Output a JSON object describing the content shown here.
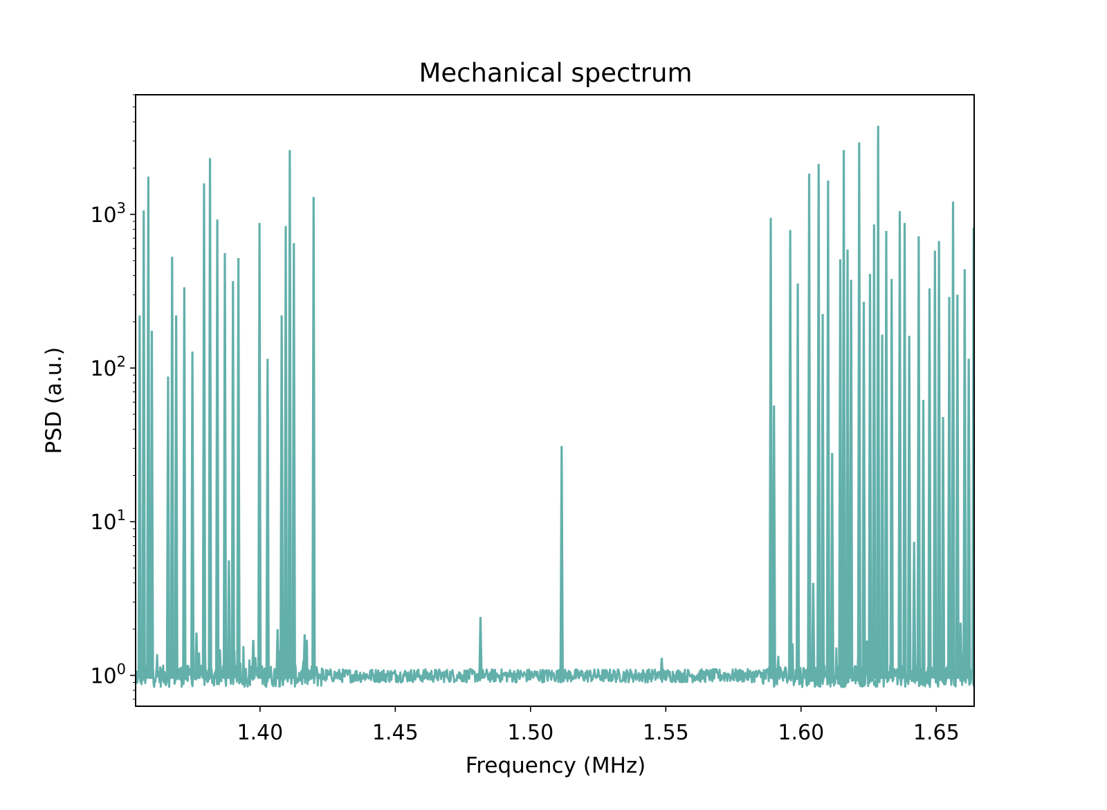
{
  "chart_data": {
    "type": "line",
    "title": "Mechanical spectrum",
    "xlabel": "Frequency (MHz)",
    "ylabel": "PSD (a.u.)",
    "xlim": [
      1.354,
      1.664
    ],
    "ylim": [
      0.63,
      6000
    ],
    "yscale": "log",
    "grid": false,
    "legend": "none",
    "line_color": "#63b0ab",
    "x_ticks": [
      {
        "value": 1.4,
        "label": "1.40"
      },
      {
        "value": 1.45,
        "label": "1.45"
      },
      {
        "value": 1.5,
        "label": "1.50"
      },
      {
        "value": 1.55,
        "label": "1.55"
      },
      {
        "value": 1.6,
        "label": "1.60"
      },
      {
        "value": 1.65,
        "label": "1.65"
      }
    ],
    "y_ticks": [
      {
        "value": 1,
        "base": "10",
        "exp": "0"
      },
      {
        "value": 10,
        "base": "10",
        "exp": "1"
      },
      {
        "value": 100,
        "base": "10",
        "exp": "2"
      },
      {
        "value": 1000,
        "base": "10",
        "exp": "3"
      }
    ],
    "baseline": 1.0,
    "peaks": [
      {
        "x": 1.3555,
        "y": 220
      },
      {
        "x": 1.357,
        "y": 1060
      },
      {
        "x": 1.3587,
        "y": 1760
      },
      {
        "x": 1.36,
        "y": 175
      },
      {
        "x": 1.366,
        "y": 88
      },
      {
        "x": 1.3675,
        "y": 530
      },
      {
        "x": 1.369,
        "y": 220
      },
      {
        "x": 1.372,
        "y": 335
      },
      {
        "x": 1.375,
        "y": 128
      },
      {
        "x": 1.3765,
        "y": 1.9
      },
      {
        "x": 1.3793,
        "y": 1590
      },
      {
        "x": 1.3815,
        "y": 2320
      },
      {
        "x": 1.3842,
        "y": 925
      },
      {
        "x": 1.387,
        "y": 560
      },
      {
        "x": 1.3885,
        "y": 5.6
      },
      {
        "x": 1.39,
        "y": 368
      },
      {
        "x": 1.392,
        "y": 520
      },
      {
        "x": 1.3975,
        "y": 1.7
      },
      {
        "x": 1.3998,
        "y": 880
      },
      {
        "x": 1.4028,
        "y": 115
      },
      {
        "x": 1.4065,
        "y": 2.0
      },
      {
        "x": 1.408,
        "y": 220
      },
      {
        "x": 1.4095,
        "y": 840
      },
      {
        "x": 1.411,
        "y": 2620
      },
      {
        "x": 1.4125,
        "y": 650
      },
      {
        "x": 1.4165,
        "y": 1.85
      },
      {
        "x": 1.4198,
        "y": 1300
      },
      {
        "x": 1.4815,
        "y": 2.4
      },
      {
        "x": 1.5115,
        "y": 31
      },
      {
        "x": 1.5485,
        "y": 1.3
      },
      {
        "x": 1.5888,
        "y": 950
      },
      {
        "x": 1.59,
        "y": 57
      },
      {
        "x": 1.596,
        "y": 790
      },
      {
        "x": 1.5988,
        "y": 355
      },
      {
        "x": 1.603,
        "y": 1840
      },
      {
        "x": 1.6045,
        "y": 4.0
      },
      {
        "x": 1.6065,
        "y": 2130
      },
      {
        "x": 1.608,
        "y": 225
      },
      {
        "x": 1.61,
        "y": 1660
      },
      {
        "x": 1.6115,
        "y": 28
      },
      {
        "x": 1.6145,
        "y": 510
      },
      {
        "x": 1.6158,
        "y": 2620
      },
      {
        "x": 1.6172,
        "y": 590
      },
      {
        "x": 1.6185,
        "y": 375
      },
      {
        "x": 1.6215,
        "y": 2940
      },
      {
        "x": 1.6232,
        "y": 270
      },
      {
        "x": 1.6255,
        "y": 410
      },
      {
        "x": 1.627,
        "y": 860
      },
      {
        "x": 1.6285,
        "y": 3770
      },
      {
        "x": 1.63,
        "y": 165
      },
      {
        "x": 1.6315,
        "y": 780
      },
      {
        "x": 1.6335,
        "y": 380
      },
      {
        "x": 1.6365,
        "y": 1050
      },
      {
        "x": 1.6383,
        "y": 880
      },
      {
        "x": 1.64,
        "y": 162
      },
      {
        "x": 1.6418,
        "y": 7.4
      },
      {
        "x": 1.6435,
        "y": 720
      },
      {
        "x": 1.6452,
        "y": 62
      },
      {
        "x": 1.6475,
        "y": 330
      },
      {
        "x": 1.6495,
        "y": 580
      },
      {
        "x": 1.651,
        "y": 670
      },
      {
        "x": 1.6525,
        "y": 48
      },
      {
        "x": 1.6548,
        "y": 290
      },
      {
        "x": 1.6562,
        "y": 1210
      },
      {
        "x": 1.6578,
        "y": 300
      },
      {
        "x": 1.659,
        "y": 2.2
      },
      {
        "x": 1.6605,
        "y": 440
      },
      {
        "x": 1.662,
        "y": 115
      },
      {
        "x": 1.6638,
        "y": 820
      }
    ]
  }
}
